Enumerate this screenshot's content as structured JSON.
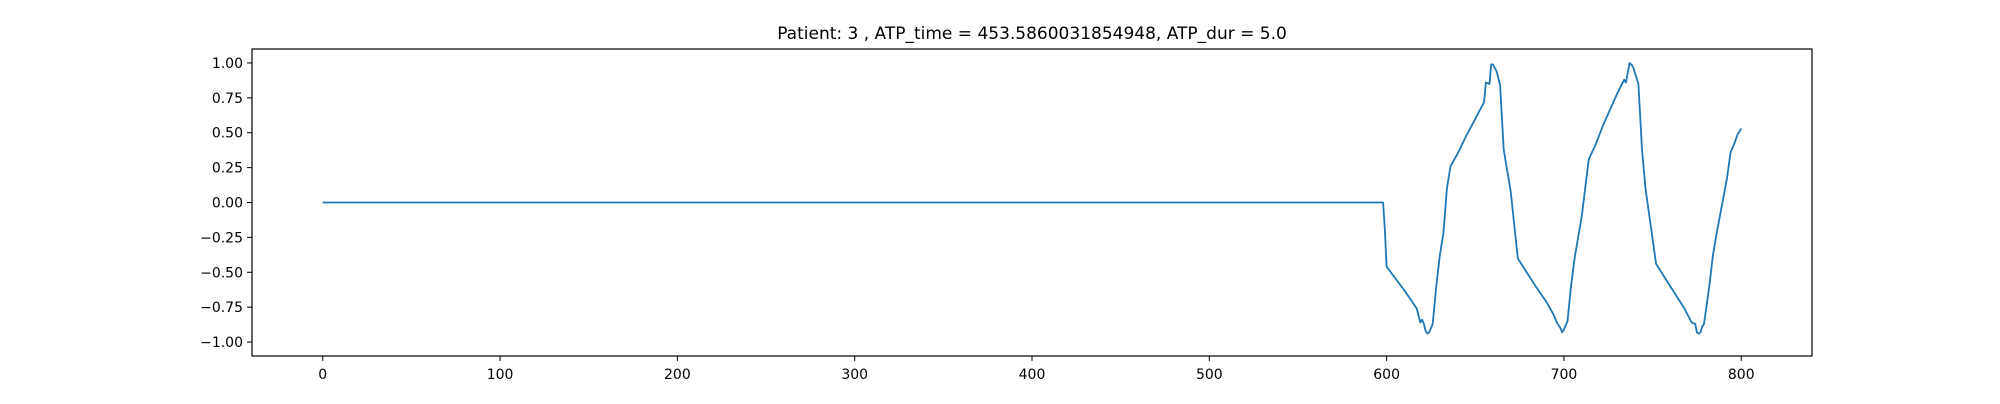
{
  "chart_data": {
    "type": "line",
    "title": "Patient: 3 , ATP_time = 453.5860031854948, ATP_dur = 5.0",
    "xlabel": "",
    "ylabel": "",
    "xlim": [
      -39.9,
      839.9
    ],
    "ylim": [
      -1.1,
      1.1
    ],
    "x_ticks": [
      0,
      100,
      200,
      300,
      400,
      500,
      600,
      700,
      800
    ],
    "y_ticks": [
      -1.0,
      -0.75,
      -0.5,
      -0.25,
      0.0,
      0.25,
      0.5,
      0.75,
      1.0
    ],
    "x_tick_labels": [
      "0",
      "100",
      "200",
      "300",
      "400",
      "500",
      "600",
      "700",
      "800"
    ],
    "y_tick_labels": [
      "−1.00",
      "−0.75",
      "−0.50",
      "−0.25",
      "0.00",
      "0.25",
      "0.50",
      "0.75",
      "1.00"
    ],
    "grid": false,
    "legend": "none",
    "series": [
      {
        "color": "#1f77b4",
        "x": [
          0,
          100,
          200,
          300,
          400,
          500,
          598,
          599,
          600,
          610,
          617,
          619,
          620,
          621,
          622,
          623,
          624,
          626,
          628,
          630,
          632,
          634,
          636,
          640,
          645,
          650,
          655,
          656,
          658,
          659,
          660,
          662,
          664,
          666,
          670,
          674,
          678,
          684,
          690,
          694,
          696,
          697,
          698,
          699,
          700,
          702,
          704,
          706,
          710,
          714,
          718,
          722,
          730,
          734,
          735,
          736,
          737,
          738,
          739,
          742,
          744,
          746,
          752,
          756,
          768,
          772,
          774,
          775,
          776,
          777,
          778,
          779,
          782,
          784,
          786,
          790,
          792,
          794,
          796,
          798,
          800
        ],
        "y": [
          0,
          0,
          0,
          0,
          0,
          0,
          0,
          -0.2,
          -0.46,
          -0.63,
          -0.76,
          -0.86,
          -0.84,
          -0.87,
          -0.92,
          -0.94,
          -0.93,
          -0.87,
          -0.6,
          -0.38,
          -0.22,
          0.1,
          0.26,
          0.35,
          0.48,
          0.6,
          0.72,
          0.86,
          0.85,
          0.99,
          0.99,
          0.94,
          0.84,
          0.38,
          0.08,
          -0.4,
          -0.48,
          -0.6,
          -0.71,
          -0.8,
          -0.86,
          -0.88,
          -0.9,
          -0.93,
          -0.91,
          -0.85,
          -0.6,
          -0.4,
          -0.1,
          0.31,
          0.42,
          0.55,
          0.78,
          0.88,
          0.86,
          0.93,
          1.0,
          0.99,
          0.97,
          0.85,
          0.38,
          0.1,
          -0.44,
          -0.52,
          -0.76,
          -0.86,
          -0.87,
          -0.93,
          -0.94,
          -0.93,
          -0.89,
          -0.87,
          -0.6,
          -0.38,
          -0.23,
          0.04,
          0.18,
          0.36,
          0.42,
          0.49,
          0.53
        ]
      }
    ]
  }
}
